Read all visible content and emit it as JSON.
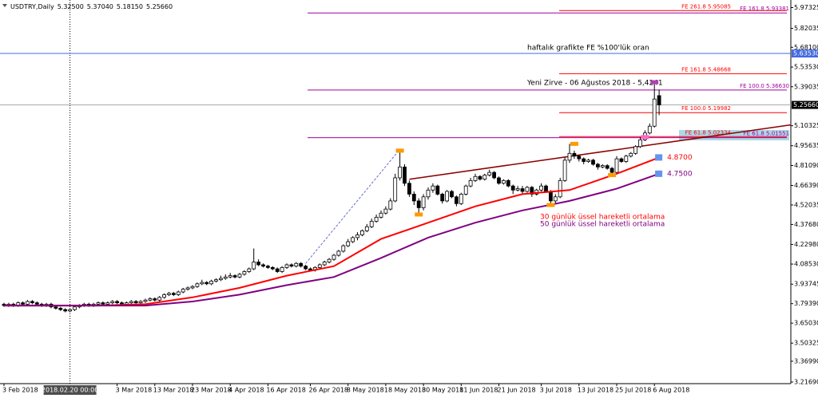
{
  "chart_data": {
    "type": "candlestick",
    "title": "USDTRY,Daily",
    "ohlc_labels": [
      "5.32500",
      "5.37040",
      "5.18150",
      "5.25660"
    ],
    "ylim": [
      3.205,
      6.029
    ],
    "yticks": [
      5.97325,
      5.82035,
      {
        "value": 5.681,
        "label": "5.68100"
      },
      {
        "value": 5.5353,
        "label": "5.53530"
      },
      5.39035,
      5.10325,
      4.95635,
      {
        "value": 4.8109,
        "label": "4.81090"
      },
      {
        "value": 4.6639,
        "label": "4.66390"
      },
      4.52035,
      {
        "value": 4.3768,
        "label": "4.37680"
      },
      {
        "value": 4.2298,
        "label": "4.22980"
      },
      {
        "value": 4.0853,
        "label": "4.08530"
      },
      3.93745,
      {
        "value": 3.7939,
        "label": "3.79390"
      },
      {
        "value": 3.6503,
        "label": "3.65030"
      },
      3.50325,
      {
        "value": 3.3699,
        "label": "3.36990"
      },
      {
        "value": 3.2169,
        "label": "3.21690"
      }
    ],
    "x_labels": [
      {
        "x": 0,
        "label": "3 Feb 2018"
      },
      {
        "x": 24,
        "label": "3 Mar 2018"
      },
      {
        "x": 32,
        "label": "13 Mar 2018"
      },
      {
        "x": 40,
        "label": "23 Mar 2018"
      },
      {
        "x": 48,
        "label": "4 Apr 2018"
      },
      {
        "x": 56,
        "label": "16 Apr 2018"
      },
      {
        "x": 65,
        "label": "26 Apr 2018"
      },
      {
        "x": 73,
        "label": "8 May 2018"
      },
      {
        "x": 81,
        "label": "18 May 2018"
      },
      {
        "x": 89,
        "label": "30 May 2018"
      },
      {
        "x": 97,
        "label": "11 Jun 2018"
      },
      {
        "x": 105,
        "label": "21 Jun 2018"
      },
      {
        "x": 114,
        "label": "3 Jul 2018"
      },
      {
        "x": 122,
        "label": "13 Jul 2018"
      },
      {
        "x": 130,
        "label": "25 Jul 2018"
      },
      {
        "x": 138,
        "label": "6 Aug 2018"
      }
    ],
    "crosshair": {
      "x": 14,
      "label": "2018.02.20 00:00"
    },
    "open": [
      3.79,
      3.78,
      3.79,
      3.78,
      3.8,
      3.79,
      3.81,
      3.8,
      3.79,
      3.78,
      3.79,
      3.77,
      3.76,
      3.75,
      3.74,
      3.75,
      3.77,
      3.78,
      3.79,
      3.78,
      3.79,
      3.8,
      3.79,
      3.8,
      3.81,
      3.8,
      3.79,
      3.8,
      3.81,
      3.8,
      3.81,
      3.82,
      3.83,
      3.82,
      3.84,
      3.86,
      3.87,
      3.86,
      3.88,
      3.9,
      3.91,
      3.92,
      3.94,
      3.95,
      3.94,
      3.96,
      3.97,
      3.98,
      3.99,
      4.0,
      3.99,
      4.01,
      4.03,
      4.05,
      4.1,
      4.08,
      4.07,
      4.06,
      4.05,
      4.03,
      4.06,
      4.08,
      4.07,
      4.09,
      4.07,
      4.05,
      4.04,
      4.06,
      4.08,
      4.1,
      4.12,
      4.15,
      4.18,
      4.22,
      4.25,
      4.28,
      4.3,
      4.33,
      4.36,
      4.4,
      4.43,
      4.46,
      4.49,
      4.55,
      4.72,
      4.8,
      4.68,
      4.6,
      4.55,
      4.5,
      4.58,
      4.63,
      4.66,
      4.6,
      4.55,
      4.62,
      4.58,
      4.53,
      4.6,
      4.66,
      4.7,
      4.73,
      4.71,
      4.74,
      4.76,
      4.72,
      4.68,
      4.7,
      4.66,
      4.63,
      4.64,
      4.62,
      4.65,
      4.6,
      4.63,
      4.66,
      4.62,
      4.55,
      4.58,
      4.7,
      4.85,
      4.9,
      4.88,
      4.86,
      4.84,
      4.85,
      4.82,
      4.8,
      4.81,
      4.79,
      4.76,
      4.86,
      4.84,
      4.88,
      4.9,
      4.95,
      5.0,
      5.05,
      5.1,
      5.325
    ],
    "high": [
      3.8,
      3.8,
      3.8,
      3.81,
      3.81,
      3.82,
      3.82,
      3.81,
      3.8,
      3.8,
      3.8,
      3.78,
      3.77,
      3.76,
      3.76,
      3.78,
      3.79,
      3.8,
      3.8,
      3.8,
      3.81,
      3.81,
      3.81,
      3.82,
      3.82,
      3.81,
      3.81,
      3.82,
      3.82,
      3.82,
      3.83,
      3.84,
      3.84,
      3.85,
      3.87,
      3.88,
      3.88,
      3.89,
      3.91,
      3.92,
      3.93,
      3.95,
      3.97,
      3.96,
      3.97,
      3.98,
      4.0,
      4.01,
      4.02,
      4.01,
      4.02,
      4.04,
      4.06,
      4.2,
      4.12,
      4.09,
      4.08,
      4.07,
      4.06,
      4.07,
      4.09,
      4.09,
      4.1,
      4.1,
      4.08,
      4.06,
      4.07,
      4.09,
      4.11,
      4.13,
      4.16,
      4.19,
      4.23,
      4.27,
      4.29,
      4.32,
      4.34,
      4.38,
      4.42,
      4.45,
      4.48,
      4.51,
      4.57,
      4.75,
      4.92,
      4.82,
      4.7,
      4.62,
      4.57,
      4.6,
      4.65,
      4.68,
      4.67,
      4.61,
      4.63,
      4.63,
      4.59,
      4.61,
      4.67,
      4.72,
      4.75,
      4.74,
      4.75,
      4.78,
      4.77,
      4.73,
      4.71,
      4.71,
      4.67,
      4.66,
      4.66,
      4.66,
      4.66,
      4.64,
      4.68,
      4.67,
      4.63,
      4.6,
      4.72,
      4.87,
      4.97,
      4.92,
      4.89,
      4.87,
      4.86,
      4.86,
      4.83,
      4.82,
      4.82,
      4.8,
      4.88,
      4.87,
      4.89,
      4.91,
      4.96,
      5.02,
      5.07,
      5.12,
      5.4241,
      5.3704
    ],
    "low": [
      3.77,
      3.77,
      3.77,
      3.77,
      3.78,
      3.78,
      3.79,
      3.78,
      3.77,
      3.77,
      3.76,
      3.75,
      3.74,
      3.73,
      3.73,
      3.74,
      3.76,
      3.77,
      3.77,
      3.77,
      3.78,
      3.78,
      3.78,
      3.79,
      3.79,
      3.78,
      3.78,
      3.79,
      3.79,
      3.79,
      3.8,
      3.81,
      3.81,
      3.81,
      3.83,
      3.85,
      3.85,
      3.85,
      3.87,
      3.89,
      3.9,
      3.91,
      3.93,
      3.93,
      3.93,
      3.95,
      3.96,
      3.97,
      3.98,
      3.98,
      3.98,
      4.0,
      4.02,
      4.04,
      4.07,
      4.06,
      4.05,
      4.04,
      4.02,
      4.02,
      4.05,
      4.06,
      4.06,
      4.06,
      4.04,
      4.03,
      4.03,
      4.05,
      4.07,
      4.09,
      4.11,
      4.14,
      4.17,
      4.21,
      4.24,
      4.26,
      4.29,
      4.32,
      4.35,
      4.39,
      4.42,
      4.45,
      4.48,
      4.54,
      4.7,
      4.66,
      4.58,
      4.52,
      4.45,
      4.48,
      4.56,
      4.61,
      4.59,
      4.53,
      4.54,
      4.57,
      4.51,
      4.52,
      4.59,
      4.65,
      4.69,
      4.7,
      4.7,
      4.73,
      4.71,
      4.67,
      4.67,
      4.65,
      4.6,
      4.62,
      4.6,
      4.61,
      4.58,
      4.59,
      4.62,
      4.61,
      4.52,
      4.53,
      4.57,
      4.69,
      4.83,
      4.86,
      4.84,
      4.82,
      4.83,
      4.81,
      4.78,
      4.79,
      4.78,
      4.74,
      4.75,
      4.83,
      4.83,
      4.87,
      4.89,
      4.94,
      4.99,
      5.04,
      5.09,
      5.1815
    ],
    "close": [
      3.78,
      3.79,
      3.78,
      3.8,
      3.79,
      3.81,
      3.8,
      3.79,
      3.78,
      3.79,
      3.77,
      3.76,
      3.75,
      3.74,
      3.75,
      3.77,
      3.78,
      3.79,
      3.78,
      3.79,
      3.8,
      3.79,
      3.8,
      3.81,
      3.8,
      3.79,
      3.8,
      3.81,
      3.8,
      3.81,
      3.82,
      3.83,
      3.82,
      3.84,
      3.86,
      3.87,
      3.86,
      3.88,
      3.9,
      3.91,
      3.92,
      3.94,
      3.95,
      3.94,
      3.96,
      3.97,
      3.98,
      3.99,
      4.0,
      3.99,
      4.01,
      4.03,
      4.05,
      4.1,
      4.08,
      4.07,
      4.06,
      4.05,
      4.03,
      4.06,
      4.08,
      4.07,
      4.09,
      4.07,
      4.05,
      4.04,
      4.06,
      4.08,
      4.1,
      4.12,
      4.15,
      4.18,
      4.22,
      4.25,
      4.28,
      4.3,
      4.33,
      4.36,
      4.4,
      4.43,
      4.46,
      4.49,
      4.55,
      4.72,
      4.8,
      4.68,
      4.6,
      4.55,
      4.5,
      4.58,
      4.63,
      4.66,
      4.6,
      4.55,
      4.62,
      4.58,
      4.53,
      4.6,
      4.66,
      4.7,
      4.73,
      4.71,
      4.74,
      4.76,
      4.72,
      4.68,
      4.7,
      4.66,
      4.63,
      4.64,
      4.62,
      4.65,
      4.6,
      4.63,
      4.66,
      4.62,
      4.55,
      4.58,
      4.7,
      4.85,
      4.9,
      4.88,
      4.86,
      4.84,
      4.85,
      4.82,
      4.8,
      4.81,
      4.79,
      4.76,
      4.86,
      4.84,
      4.88,
      4.9,
      4.95,
      5.0,
      5.05,
      5.1,
      5.3,
      5.2566
    ],
    "lines": [
      {
        "name": "30 günlük üssel hareketli ortalama",
        "color": "#ff0000",
        "x": [
          0,
          10,
          20,
          30,
          40,
          50,
          60,
          70,
          80,
          90,
          100,
          110,
          120,
          130,
          139
        ],
        "values": [
          3.78,
          3.78,
          3.78,
          3.79,
          3.84,
          3.91,
          4.0,
          4.07,
          4.27,
          4.39,
          4.51,
          4.6,
          4.63,
          4.75,
          4.87
        ],
        "last_label": "4.8700"
      },
      {
        "name": "50 günlük üssel hareketli ortalama",
        "color": "#800080",
        "x": [
          0,
          10,
          20,
          30,
          40,
          50,
          60,
          70,
          80,
          90,
          100,
          110,
          120,
          130,
          139
        ],
        "values": [
          3.78,
          3.78,
          3.78,
          3.78,
          3.81,
          3.86,
          3.93,
          3.99,
          4.13,
          4.28,
          4.39,
          4.48,
          4.55,
          4.64,
          4.75
        ],
        "last_label": "4.7500"
      }
    ],
    "levels": [
      {
        "label": "FE 261.8 5.95085",
        "value": 5.95085,
        "color": "#ff0000"
      },
      {
        "label": "FE 161.8 5.93381",
        "value": 5.93381,
        "color": "#a000a0"
      },
      {
        "label": "FE 161.8 5.48668",
        "value": 5.48668,
        "color": "#ff0000"
      },
      {
        "label": "FE 100.0 5.36630",
        "value": 5.3663,
        "color": "#a000a0"
      },
      {
        "label": "FE 100.0 5.19982",
        "value": 5.19982,
        "color": "#ff0000"
      },
      {
        "label": "FE 61.8 5.02334",
        "value": 5.02334,
        "color": "#ff0000"
      },
      {
        "label": "FE 61.8 5.01551",
        "value": 5.01551,
        "color": "#a000a0"
      }
    ],
    "weekly_level": {
      "value": 5.6353,
      "label": "5.63530",
      "note": "haftalık grafikte FE %100'lük oran",
      "color": "#4169e1"
    },
    "peak_note": "Yeni Zirve - 06 Ağustos 2018 - 5,4241",
    "trendline": {
      "x": [
        86,
        167
      ],
      "values": [
        4.71,
        5.11
      ],
      "color": "#8b0000"
    },
    "fibo_line": {
      "x": [
        64,
        84
      ],
      "values": [
        4.09,
        4.93
      ],
      "color": "#6a6ad0"
    },
    "markers": [
      {
        "x": 84,
        "value": 4.92,
        "color": "#ff9900"
      },
      {
        "x": 88,
        "value": 4.45,
        "color": "#ff9900"
      },
      {
        "x": 121,
        "value": 4.97,
        "color": "#ff9900"
      },
      {
        "x": 116,
        "value": 4.52,
        "color": "#ff9900"
      },
      {
        "x": 129,
        "value": 4.74,
        "color": "#ff9900"
      },
      {
        "x": 136,
        "value": 5.02,
        "color": "#ff66cc"
      },
      {
        "x": 138,
        "value": 5.4241,
        "color": "#b040b0"
      }
    ]
  }
}
